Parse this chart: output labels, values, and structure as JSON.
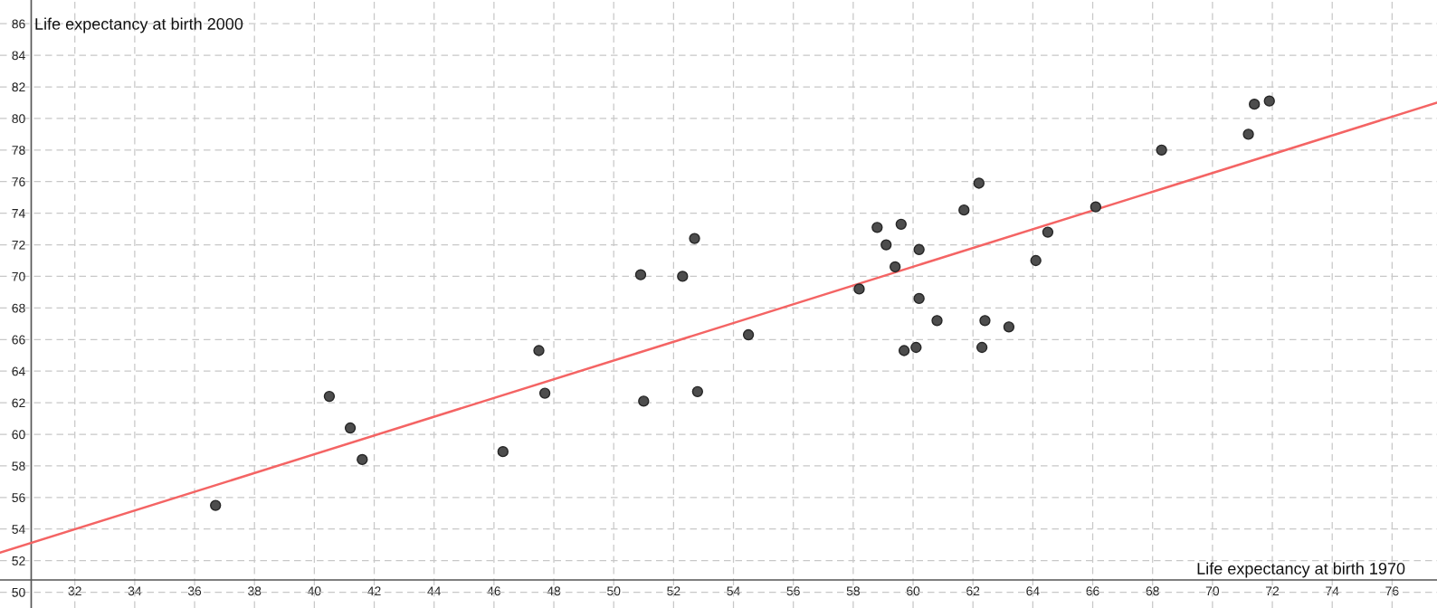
{
  "chart_data": {
    "type": "scatter",
    "xlabel": "Life expectancy at birth 1970",
    "ylabel": "Life expectancy at birth 2000",
    "series": [
      {
        "color": "#4d4d4d",
        "marker": "circle",
        "x": [
          36.7,
          40.5,
          41.2,
          41.6,
          46.3,
          47.5,
          47.7,
          50.9,
          51.0,
          52.3,
          52.7,
          52.8,
          54.5,
          58.2,
          58.8,
          59.1,
          59.4,
          59.6,
          59.7,
          60.1,
          60.2,
          60.2,
          60.8,
          61.7,
          62.2,
          62.3,
          62.4,
          63.2,
          64.1,
          64.5,
          66.1,
          68.3,
          71.2,
          71.4,
          71.9
        ],
        "values": [
          55.5,
          62.4,
          60.4,
          58.4,
          58.9,
          65.3,
          62.6,
          70.1,
          62.1,
          70.0,
          72.4,
          62.7,
          66.3,
          69.2,
          73.1,
          72.0,
          70.6,
          73.3,
          65.3,
          65.5,
          71.7,
          68.6,
          67.2,
          74.2,
          75.9,
          65.5,
          67.2,
          66.8,
          71.0,
          72.8,
          74.4,
          78.0,
          79.0,
          80.9,
          81.1
        ]
      },
      {
        "type": "line",
        "color": "#f46464",
        "x": [
          29.5,
          77.5
        ],
        "values": [
          52.5,
          81.0
        ]
      }
    ],
    "xlim": [
      29.5,
      77.5
    ],
    "ylim": [
      49,
      87.5
    ],
    "xticks": [
      32,
      34,
      36,
      38,
      40,
      42,
      44,
      46,
      48,
      50,
      52,
      54,
      56,
      58,
      60,
      62,
      64,
      66,
      68,
      70,
      72,
      74,
      76
    ],
    "yticks": [
      50,
      52,
      54,
      56,
      58,
      60,
      62,
      64,
      66,
      68,
      70,
      72,
      74,
      76,
      78,
      80,
      82,
      84,
      86
    ],
    "grid": true,
    "line_style": "solid"
  }
}
